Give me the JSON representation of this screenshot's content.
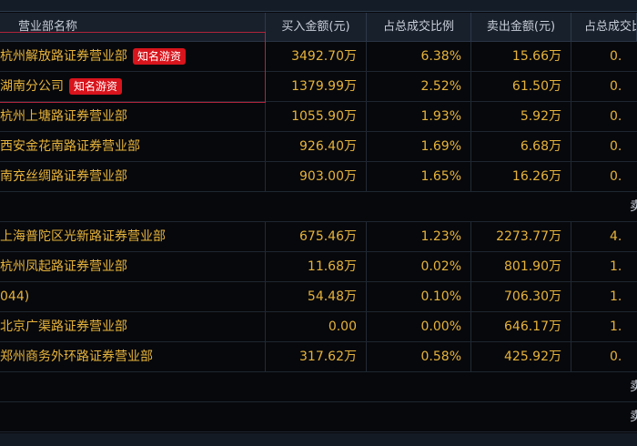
{
  "columns": [
    "营业部名称",
    "买入金额(元)",
    "占总成交比例",
    "卖出金额(元)",
    "占总成交比"
  ],
  "tag_label": "知名游资",
  "buy_rows": [
    {
      "name": "杭州解放路证券营业部",
      "tag": true,
      "buy": "3492.70万",
      "buy_ratio": "6.38%",
      "sell": "15.66万",
      "sell_ratio": "0."
    },
    {
      "name": "湖南分公司",
      "tag": true,
      "buy": "1379.99万",
      "buy_ratio": "2.52%",
      "sell": "61.50万",
      "sell_ratio": "0."
    },
    {
      "name": "杭州上塘路证券营业部",
      "tag": false,
      "buy": "1055.90万",
      "buy_ratio": "1.93%",
      "sell": "5.92万",
      "sell_ratio": "0."
    },
    {
      "name": "西安金花南路证券营业部",
      "tag": false,
      "buy": "926.40万",
      "buy_ratio": "1.69%",
      "sell": "6.68万",
      "sell_ratio": "0."
    },
    {
      "name": "南充丝绸路证券营业部",
      "tag": false,
      "buy": "903.00万",
      "buy_ratio": "1.65%",
      "sell": "16.26万",
      "sell_ratio": "0."
    }
  ],
  "sell_rows": [
    {
      "name": "上海普陀区光新路证券营业部",
      "buy": "675.46万",
      "buy_ratio": "1.23%",
      "sell": "2273.77万",
      "sell_ratio": "4."
    },
    {
      "name": "杭州凤起路证券营业部",
      "buy": "11.68万",
      "buy_ratio": "0.02%",
      "sell": "801.90万",
      "sell_ratio": "1."
    },
    {
      "name": "044)",
      "buy": "54.48万",
      "buy_ratio": "0.10%",
      "sell": "706.30万",
      "sell_ratio": "1."
    },
    {
      "name": "北京广渠路证券营业部",
      "buy": "0.00",
      "buy_ratio": "0.00%",
      "sell": "646.17万",
      "sell_ratio": "1."
    },
    {
      "name": "郑州商务外环路证券营业部",
      "buy": "317.62万",
      "buy_ratio": "0.58%",
      "sell": "425.92万",
      "sell_ratio": "0."
    }
  ],
  "summary_glyph": "卖",
  "colors": {
    "text": "#e6b33c",
    "tag": "#d8141c",
    "header_bg": "#18202c",
    "highlight_border": "#b0243c"
  }
}
